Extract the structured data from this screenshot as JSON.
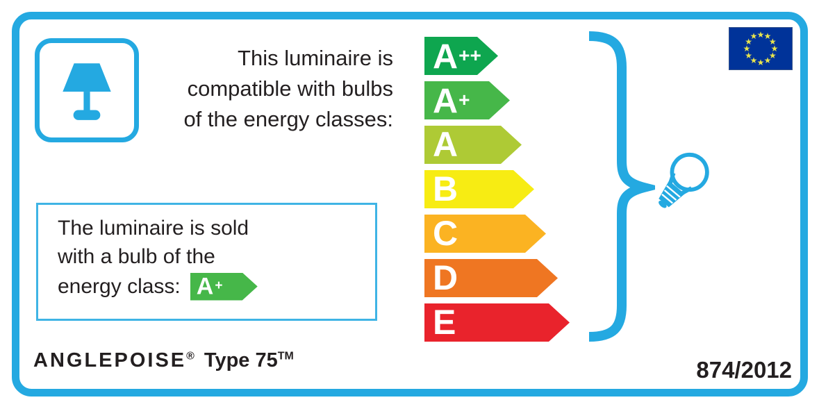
{
  "label": {
    "compatibility_text": [
      "This luminaire is",
      "compatible with bulbs",
      "of the energy classes:"
    ],
    "sold_with_text": [
      "The luminaire is sold",
      "with a bulb of the",
      "energy class:"
    ],
    "sold_bulb_class": {
      "base": "A",
      "sup": "+",
      "color": "#46b749"
    },
    "energy_scale": {
      "classes": [
        {
          "base": "A",
          "sup": "++",
          "color": "#0ea64f"
        },
        {
          "base": "A",
          "sup": "+",
          "color": "#46b749"
        },
        {
          "base": "A",
          "sup": "",
          "color": "#aeca35"
        },
        {
          "base": "B",
          "sup": "",
          "color": "#f7ec13"
        },
        {
          "base": "C",
          "sup": "",
          "color": "#fbb322"
        },
        {
          "base": "D",
          "sup": "",
          "color": "#ef7622"
        },
        {
          "base": "E",
          "sup": "",
          "color": "#e9232c"
        }
      ]
    },
    "eu_flag": {
      "star_count": 12,
      "field_color": "#003399",
      "star_color": "#e8e44d"
    },
    "brand": {
      "name": "ANGLEPOISE",
      "reg": "®",
      "model": "Type 75",
      "tm": "TM"
    },
    "regulation": "874/2012",
    "colors": {
      "accent_blue": "#24a9e1",
      "text": "#231f20",
      "arrow_text": "#ffffff"
    }
  }
}
